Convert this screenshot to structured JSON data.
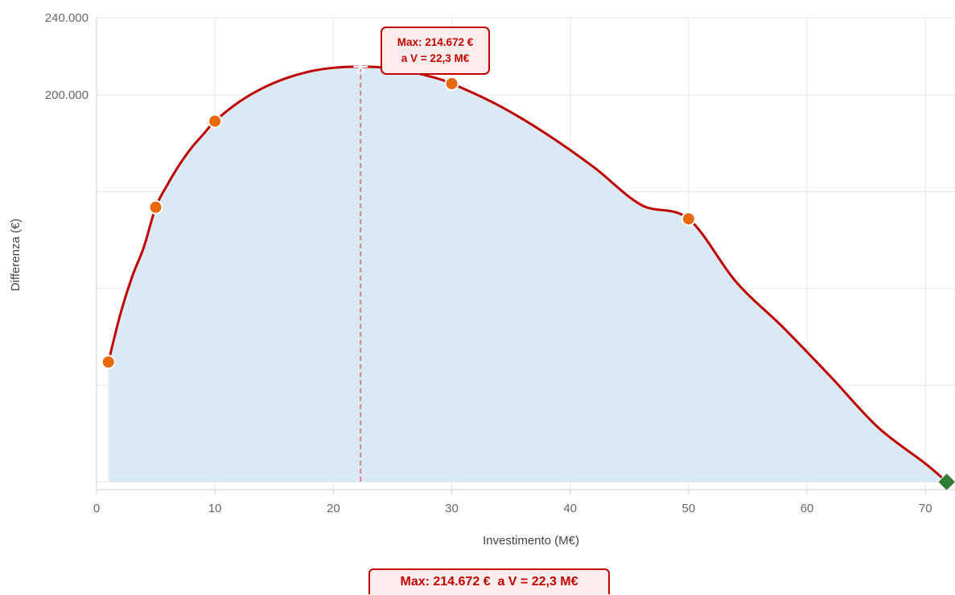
{
  "chart_data": {
    "type": "line",
    "xlabel": "Investimento (M€)",
    "ylabel": "Differenza (€)",
    "xlim": [
      0,
      72.5
    ],
    "ylim": [
      -4000,
      240000
    ],
    "x_ticks": [
      0,
      10,
      20,
      30,
      40,
      50,
      60,
      70
    ],
    "x_tick_labels": [
      "0",
      "10",
      "20",
      "30",
      "40",
      "50",
      "60",
      "70"
    ],
    "y_grid": [
      0,
      50000,
      100000,
      150000,
      200000,
      240000
    ],
    "y_tick_labels": [
      {
        "value": 240000,
        "label": "240.000"
      },
      {
        "value": 200000,
        "label": "200.000"
      }
    ],
    "grid": true,
    "series": [
      {
        "kind": "curve",
        "color": "#c00000",
        "fill": "#dbe9f5",
        "x": [
          1,
          2,
          3,
          4,
          5,
          6,
          7,
          8,
          9,
          10,
          12,
          14,
          16,
          18,
          20,
          22.3,
          24,
          26,
          28,
          30,
          34,
          38,
          42,
          46,
          50,
          54,
          58,
          62,
          66,
          70,
          71.8
        ],
        "y": [
          62000,
          86500,
          106000,
          121500,
          142000,
          153800,
          164000,
          172600,
          179600,
          186500,
          196300,
          203500,
          208700,
          212200,
          214100,
          214672,
          214300,
          212700,
          209900,
          205900,
          194500,
          179900,
          162700,
          143200,
          136000,
          103500,
          79800,
          54400,
          28200,
          9500,
          0
        ]
      },
      {
        "kind": "points",
        "marker": "circle",
        "color": "#e8690b",
        "x": [
          1,
          5,
          10,
          30,
          50
        ],
        "y": [
          62000,
          142000,
          186500,
          205900,
          136000
        ]
      },
      {
        "kind": "points",
        "marker": "diamond",
        "color": "#2e7d32",
        "x": [
          71.8
        ],
        "y": [
          0
        ]
      }
    ],
    "max_marker": {
      "x": 22.3,
      "y": 214672
    },
    "annotation": {
      "line1": "Max: 214.672 €",
      "line2": "a V = 22,3 M€"
    },
    "bottom_label": "Max: 214.672 €  a V = 22,3 M€"
  }
}
